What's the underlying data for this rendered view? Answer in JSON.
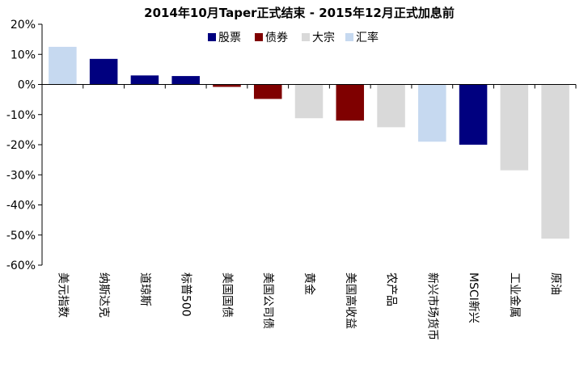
{
  "chart_data": {
    "type": "bar",
    "title": "2014年10月Taper正式结束 - 2015年12月正式加息前",
    "xlabel": "",
    "ylabel": "",
    "ylim": [
      -60,
      20
    ],
    "yticks": [
      20,
      10,
      0,
      -10,
      -20,
      -30,
      -40,
      -50,
      -60
    ],
    "ytick_labels": [
      "20%",
      "10%",
      "0%",
      "-10%",
      "-20%",
      "-30%",
      "-40%",
      "-50%",
      "-60%"
    ],
    "grid": false,
    "legend_position": "top",
    "legend": [
      {
        "name": "股票",
        "color": "#00007f"
      },
      {
        "name": "债券",
        "color": "#7f0000"
      },
      {
        "name": "大宗",
        "color": "#d9d9d9"
      },
      {
        "name": "汇率",
        "color": "#c6d9f0"
      }
    ],
    "categories": [
      "美元指数",
      "纳斯达克",
      "道琼斯",
      "标普500",
      "美国国债",
      "美国公司债",
      "黄金",
      "美国高收益",
      "农产品",
      "新兴市场货币",
      "MSCI新兴",
      "工业金属",
      "原油"
    ],
    "values": [
      12.5,
      8.5,
      3.0,
      2.8,
      -0.8,
      -4.8,
      -11.2,
      -12.0,
      -14.2,
      -19.0,
      -20.0,
      -28.5,
      -51.2
    ],
    "groups": [
      "汇率",
      "股票",
      "股票",
      "股票",
      "债券",
      "债券",
      "大宗",
      "债券",
      "大宗",
      "汇率",
      "股票",
      "大宗",
      "大宗"
    ]
  }
}
